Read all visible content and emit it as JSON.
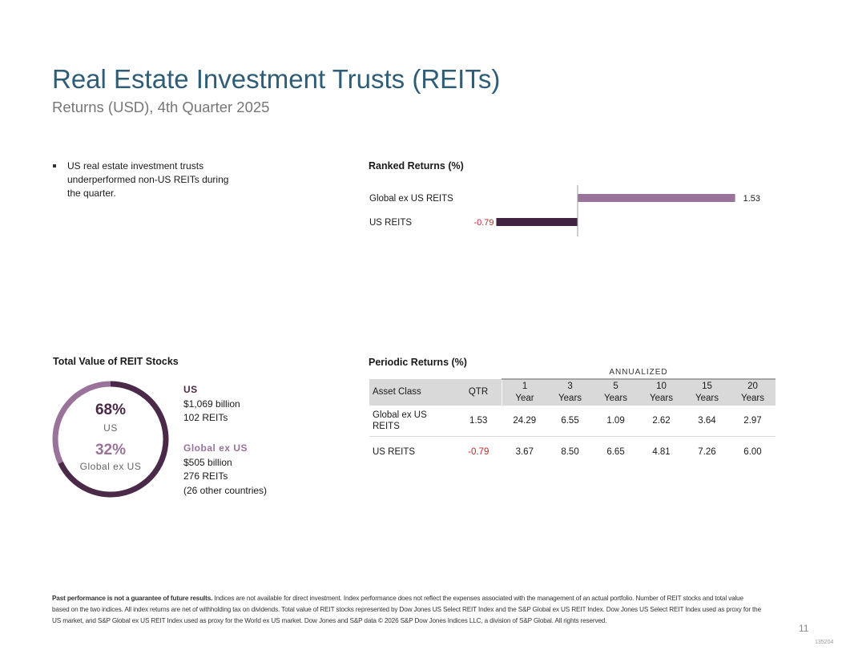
{
  "header": {
    "title": "Real Estate Investment Trusts (REITs)",
    "subtitle": "Returns (USD), 4th Quarter 2025"
  },
  "bullet": "US real estate investment trusts underperformed non-US REITs during the quarter.",
  "ranked": {
    "title": "Ranked Returns (%)"
  },
  "total_value": {
    "title": "Total Value of REIT Stocks",
    "us_pct": "68%",
    "us_label": "US",
    "global_pct": "32%",
    "global_label": "Global ex US",
    "legend_us": {
      "head": "US",
      "line1": "$1,069 billion",
      "line2": "102 REITs"
    },
    "legend_global": {
      "head": "Global ex US",
      "line1": "$505 billion",
      "line2": "276 REITs",
      "line3": "(26 other countries)"
    }
  },
  "periodic": {
    "title": "Periodic Returns (%)",
    "annualized_label": "ANNUALIZED",
    "headers": {
      "asset": "Asset Class",
      "qtr": "QTR",
      "y1_num": "1",
      "y1_unit": "Year",
      "y3_num": "3",
      "y3_unit": "Years",
      "y5_num": "5",
      "y5_unit": "Years",
      "y10_num": "10",
      "y10_unit": "Years",
      "y15_num": "15",
      "y15_unit": "Years",
      "y20_num": "20",
      "y20_unit": "Years"
    },
    "rows": [
      {
        "asset_line1": "Global ex US",
        "asset_line2": "REITS",
        "qtr": "1.53",
        "y1": "24.29",
        "y3": "6.55",
        "y5": "1.09",
        "y10": "2.62",
        "y15": "3.64",
        "y20": "2.97"
      },
      {
        "asset": "US REITS",
        "qtr": "-0.79",
        "y1": "3.67",
        "y3": "8.50",
        "y5": "6.65",
        "y10": "4.81",
        "y15": "7.26",
        "y20": "6.00"
      }
    ]
  },
  "colors": {
    "title_blue": "#2f5d78",
    "dark_plum": "#4a2a48",
    "light_plum": "#9a739b",
    "negative_red": "#c0262d"
  },
  "chart_data": [
    {
      "type": "bar",
      "orientation": "horizontal",
      "title": "Ranked Returns (%)",
      "categories": [
        "Global ex US REITS",
        "US REITS"
      ],
      "values": [
        1.53,
        -0.79
      ],
      "value_labels": [
        "1.53",
        "-0.79"
      ],
      "colors": [
        "#9a739b",
        "#3f2340"
      ],
      "xlim": [
        -0.8,
        1.55
      ],
      "grid": false
    },
    {
      "type": "pie",
      "style": "donut",
      "title": "Total Value of REIT Stocks",
      "categories": [
        "US",
        "Global ex US"
      ],
      "values": [
        68,
        32
      ],
      "colors": [
        "#4a2a48",
        "#9a739b"
      ]
    }
  ],
  "footnote": {
    "bold": "Past performance is not a guarantee of future results.",
    "text": " Indices are not available for direct investment. Index performance does not reflect the expenses associated with the management of an actual portfolio. Number of REIT stocks and total value based on the two indices. All index returns are net of withholding tax on dividends. Total value of REIT stocks represented by Dow Jones US Select REIT Index and the S&P Global ex US REIT Index. Dow Jones US Select REIT Index used as proxy for the US market, and S&P Global ex US REIT Index used as proxy for the World ex US market. Dow Jones and S&P data © 2026 S&P Dow Jones Indices LLC, a division of S&P Global. All rights reserved."
  },
  "page_number": "11",
  "doc_code": "135204"
}
